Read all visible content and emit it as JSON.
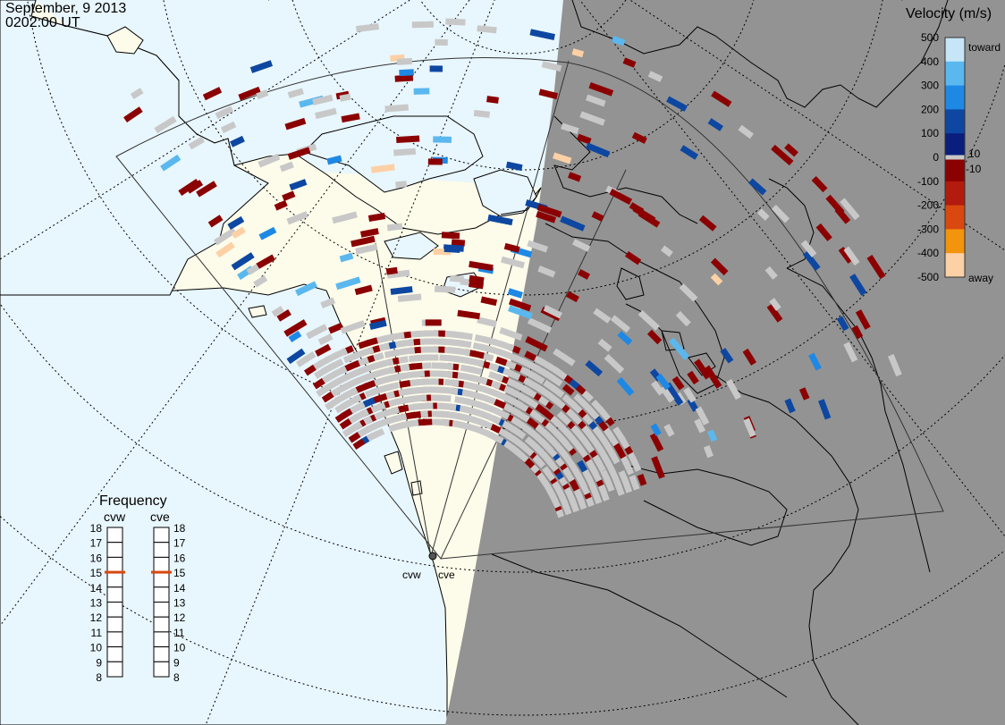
{
  "header": {
    "date": "September, 9 2013",
    "time": "0202:00 UT"
  },
  "legend": {
    "title": "Velocity (m/s)",
    "toward_label": "toward",
    "away_label": "away",
    "ticks": [
      "500",
      "400",
      "300",
      "200",
      "100",
      "0",
      "-100",
      "-200",
      "-300",
      "-400",
      "-500"
    ],
    "small_ticks": [
      "10",
      "-10"
    ],
    "colors": [
      "#c6e6f7",
      "#5ab8ef",
      "#1e88e5",
      "#0d47a1",
      "#0a1f7d",
      "#8b0000",
      "#b21b0d",
      "#d9480f",
      "#f2950d",
      "#fdd0a5"
    ],
    "ground_scatter_color": "#c8c8c8"
  },
  "frequency_panel": {
    "title": "Frequency",
    "radars": [
      {
        "name": "cvw",
        "value": 15
      },
      {
        "name": "cve",
        "value": 15
      }
    ],
    "scale": [
      "18",
      "17",
      "16",
      "15",
      "14",
      "13",
      "12",
      "11",
      "10",
      "9",
      "8"
    ],
    "marker_color": "#d9480f"
  },
  "radar_site_labels": [
    "cvw",
    "cve"
  ],
  "map_colors": {
    "ocean_day": "#e8f6fd",
    "land_day": "#fdfcea",
    "night": "#939393"
  }
}
